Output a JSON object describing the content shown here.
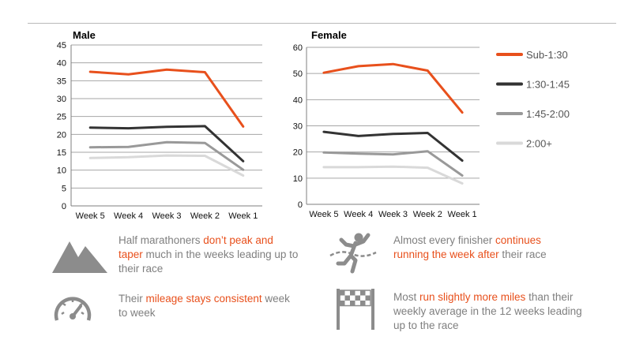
{
  "colors": {
    "accent": "#e8501c",
    "dark": "#333333",
    "mid": "#999999",
    "light": "#d9d9d9",
    "grid": "#a6a6a6",
    "icon": "#8c8c8c"
  },
  "chart_data": [
    {
      "type": "line",
      "title": "Male",
      "categories": [
        "Week 5",
        "Week 4",
        "Week 3",
        "Week 2",
        "Week 1"
      ],
      "yticks": [
        "0",
        "5",
        "10",
        "15",
        "20",
        "25",
        "30",
        "35",
        "40",
        "45"
      ],
      "ylim": [
        0,
        45
      ],
      "grid": true,
      "series": [
        {
          "name": "Sub-1:30",
          "values": [
            37.5,
            36.8,
            38.1,
            37.4,
            22.2
          ]
        },
        {
          "name": "1:30-1:45",
          "values": [
            21.9,
            21.7,
            22.1,
            22.3,
            12.5
          ]
        },
        {
          "name": "1:45-2:00",
          "values": [
            16.4,
            16.5,
            17.8,
            17.6,
            10.1
          ]
        },
        {
          "name": "2:00+",
          "values": [
            13.4,
            13.6,
            14.1,
            14.0,
            8.5
          ]
        }
      ]
    },
    {
      "type": "line",
      "title": "Female",
      "categories": [
        "Week 5",
        "Week 4",
        "Week 3",
        "Week 2",
        "Week 1"
      ],
      "yticks": [
        "0",
        "10",
        "20",
        "30",
        "40",
        "50",
        "60"
      ],
      "ylim": [
        0,
        60
      ],
      "grid": true,
      "legend_position": "right",
      "series": [
        {
          "name": "Sub-1:30",
          "values": [
            50.3,
            52.8,
            53.6,
            51.1,
            35.1
          ]
        },
        {
          "name": "1:30-1:45",
          "values": [
            27.7,
            26.1,
            26.9,
            27.3,
            16.7
          ]
        },
        {
          "name": "1:45-2:00",
          "values": [
            19.8,
            19.4,
            19.1,
            20.3,
            11.0
          ]
        },
        {
          "name": "2:00+",
          "values": [
            14.2,
            14.2,
            14.4,
            14.0,
            8.0
          ]
        }
      ]
    }
  ],
  "legend": {
    "items": [
      "Sub-1:30",
      "1:30-1:45",
      "1:45-2:00",
      "2:00+"
    ]
  },
  "notes": [
    {
      "icon": "mountains-icon",
      "before": "Half marathoners ",
      "highlight": "don’t peak and taper",
      "after": " much in the weeks leading up to their race"
    },
    {
      "icon": "speedometer-icon",
      "before": "Their ",
      "highlight": "mileage stays consistent",
      "after": " week to week"
    },
    {
      "icon": "runner-finish-icon",
      "before": "Almost every finisher ",
      "highlight": "continues running the week after",
      "after": " their race"
    },
    {
      "icon": "checkered-flag-icon",
      "before": "Most ",
      "highlight": "run slightly more miles",
      "after": " than their weekly average in the 12 weeks leading up to the race"
    }
  ]
}
